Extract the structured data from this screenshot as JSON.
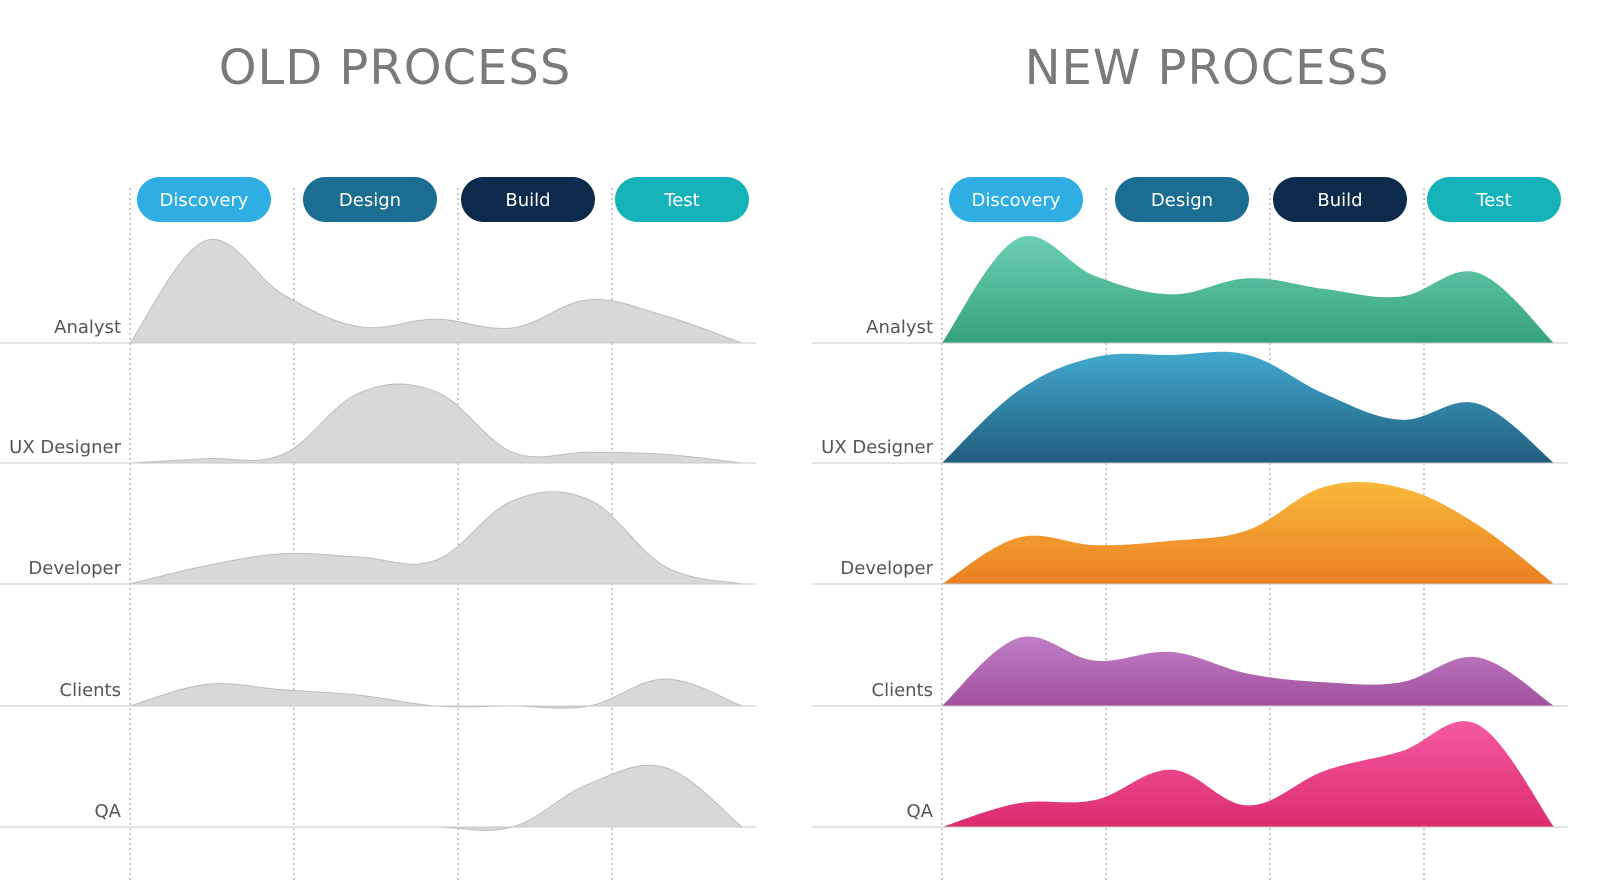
{
  "phase_colors": {
    "Discovery": "#2eaee3",
    "Design": "#1b6d91",
    "Build": "#0c2a4b",
    "Test": "#16b2ba"
  },
  "chart_data": [
    {
      "type": "area",
      "title": "OLD PROCESS",
      "phases": [
        "Discovery",
        "Design",
        "Build",
        "Test"
      ],
      "roles": [
        "Analyst",
        "UX Designer",
        "Developer",
        "Clients",
        "QA"
      ],
      "x": [
        0,
        0.5,
        1,
        1.5,
        2,
        2.5,
        3,
        3.5,
        4
      ],
      "xlim": [
        0,
        4
      ],
      "ylim": [
        0,
        1
      ],
      "fill": "#d8d8d8",
      "stroke": "#bdbdbd",
      "series": [
        {
          "name": "Analyst",
          "values": [
            0,
            0.95,
            0.45,
            0.15,
            0.22,
            0.14,
            0.4,
            0.25,
            0
          ]
        },
        {
          "name": "UX Designer",
          "values": [
            0,
            0.04,
            0.08,
            0.65,
            0.66,
            0.1,
            0.1,
            0.08,
            0
          ]
        },
        {
          "name": "Developer",
          "values": [
            0,
            0.17,
            0.28,
            0.25,
            0.22,
            0.77,
            0.78,
            0.16,
            0
          ]
        },
        {
          "name": "Clients",
          "values": [
            0,
            0.2,
            0.15,
            0.1,
            0,
            0,
            0,
            0.25,
            0
          ]
        },
        {
          "name": "QA",
          "values": [
            0,
            0,
            0,
            0,
            0,
            0,
            0.4,
            0.55,
            0
          ]
        }
      ]
    },
    {
      "type": "area",
      "title": "NEW PROCESS",
      "phases": [
        "Discovery",
        "Design",
        "Build",
        "Test"
      ],
      "roles": [
        "Analyst",
        "UX Designer",
        "Developer",
        "Clients",
        "QA"
      ],
      "x": [
        0,
        0.5,
        1,
        1.5,
        2,
        2.5,
        3,
        3.5,
        4
      ],
      "xlim": [
        0,
        4
      ],
      "ylim": [
        0,
        1
      ],
      "series": [
        {
          "name": "Analyst",
          "colors": [
            "#6bcfb3",
            "#35a27b"
          ],
          "values": [
            0,
            0.97,
            0.62,
            0.45,
            0.6,
            0.5,
            0.43,
            0.65,
            0
          ]
        },
        {
          "name": "UX Designer",
          "colors": [
            "#43a9cf",
            "#1f5d7d"
          ],
          "values": [
            0,
            0.67,
            0.98,
            1.0,
            1.0,
            0.64,
            0.4,
            0.55,
            0
          ]
        },
        {
          "name": "Developer",
          "colors": [
            "#f9b93c",
            "#e97f21"
          ],
          "values": [
            0,
            0.43,
            0.36,
            0.4,
            0.5,
            0.9,
            0.89,
            0.55,
            0
          ]
        },
        {
          "name": "Clients",
          "colors": [
            "#c07fc4",
            "#a2509f"
          ],
          "values": [
            0,
            0.63,
            0.42,
            0.5,
            0.3,
            0.22,
            0.22,
            0.45,
            0
          ]
        },
        {
          "name": "QA",
          "colors": [
            "#f45aa0",
            "#dc2c6e"
          ],
          "values": [
            0,
            0.22,
            0.25,
            0.53,
            0.2,
            0.52,
            0.7,
            0.95,
            0
          ]
        }
      ]
    }
  ]
}
